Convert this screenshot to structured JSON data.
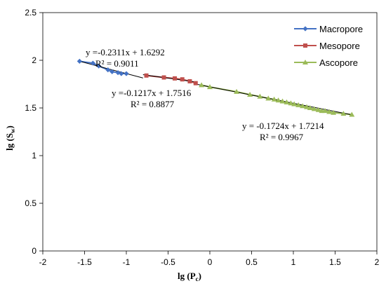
{
  "chart_data": {
    "type": "scatter",
    "xlabel": "lg (P",
    "xlabel_sub": "c",
    "xlabel_close": ")",
    "ylabel": "lg (S",
    "ylabel_sub": "w",
    "ylabel_close": ")",
    "xlim": [
      -2,
      2
    ],
    "ylim": [
      0,
      2.5
    ],
    "xticks": [
      "-2",
      "-1.5",
      "-1",
      "-0.5",
      "0",
      "0.5",
      "1",
      "1.5",
      "2"
    ],
    "yticks": [
      "0",
      "0.5",
      "1",
      "1.5",
      "2",
      "2.5"
    ],
    "grid": false,
    "legend_position": "top-right",
    "series": [
      {
        "name": "Macropore",
        "color": "#4472c4",
        "marker": "diamond",
        "x": [
          -1.56,
          -1.4,
          -1.33,
          -1.22,
          -1.17,
          -1.1,
          -1.06,
          -1.0
        ],
        "y": [
          1.99,
          1.97,
          1.94,
          1.9,
          1.88,
          1.87,
          1.86,
          1.86
        ],
        "fit": {
          "slope": -0.2311,
          "intercept": 1.6292,
          "x_range": [
            -1.56,
            -0.8
          ]
        },
        "equation": "y =-0.2311x + 1.6292",
        "r2": "R² = 0.9011"
      },
      {
        "name": "Mesopore",
        "color": "#c0504d",
        "marker": "square",
        "x": [
          -0.76,
          -0.55,
          -0.42,
          -0.33,
          -0.24,
          -0.17
        ],
        "y": [
          1.84,
          1.82,
          1.81,
          1.8,
          1.78,
          1.76
        ],
        "fit": {
          "slope": -0.1217,
          "intercept": 1.7516,
          "x_range": [
            -0.8,
            -0.15
          ]
        },
        "equation": "y =-0.1217x + 1.7516",
        "r2": "R² = 0.8877"
      },
      {
        "name": "Ascopore",
        "color": "#9bbb59",
        "marker": "triangle",
        "x": [
          -0.1,
          0.0,
          0.32,
          0.48,
          0.6,
          0.7,
          0.77,
          0.82,
          0.87,
          0.92,
          0.97,
          1.01,
          1.06,
          1.11,
          1.16,
          1.2,
          1.25,
          1.3,
          1.34,
          1.38,
          1.43,
          1.48,
          1.6,
          1.7
        ],
        "y": [
          1.74,
          1.72,
          1.67,
          1.64,
          1.62,
          1.6,
          1.59,
          1.58,
          1.57,
          1.56,
          1.55,
          1.54,
          1.53,
          1.52,
          1.51,
          1.5,
          1.49,
          1.48,
          1.47,
          1.47,
          1.46,
          1.45,
          1.44,
          1.43
        ],
        "fit": {
          "slope": -0.1724,
          "intercept": 1.7214,
          "x_range": [
            -0.15,
            1.7
          ]
        },
        "equation": "y = -0.1724x + 1.7214",
        "r2": "R² = 0.9967"
      }
    ]
  }
}
